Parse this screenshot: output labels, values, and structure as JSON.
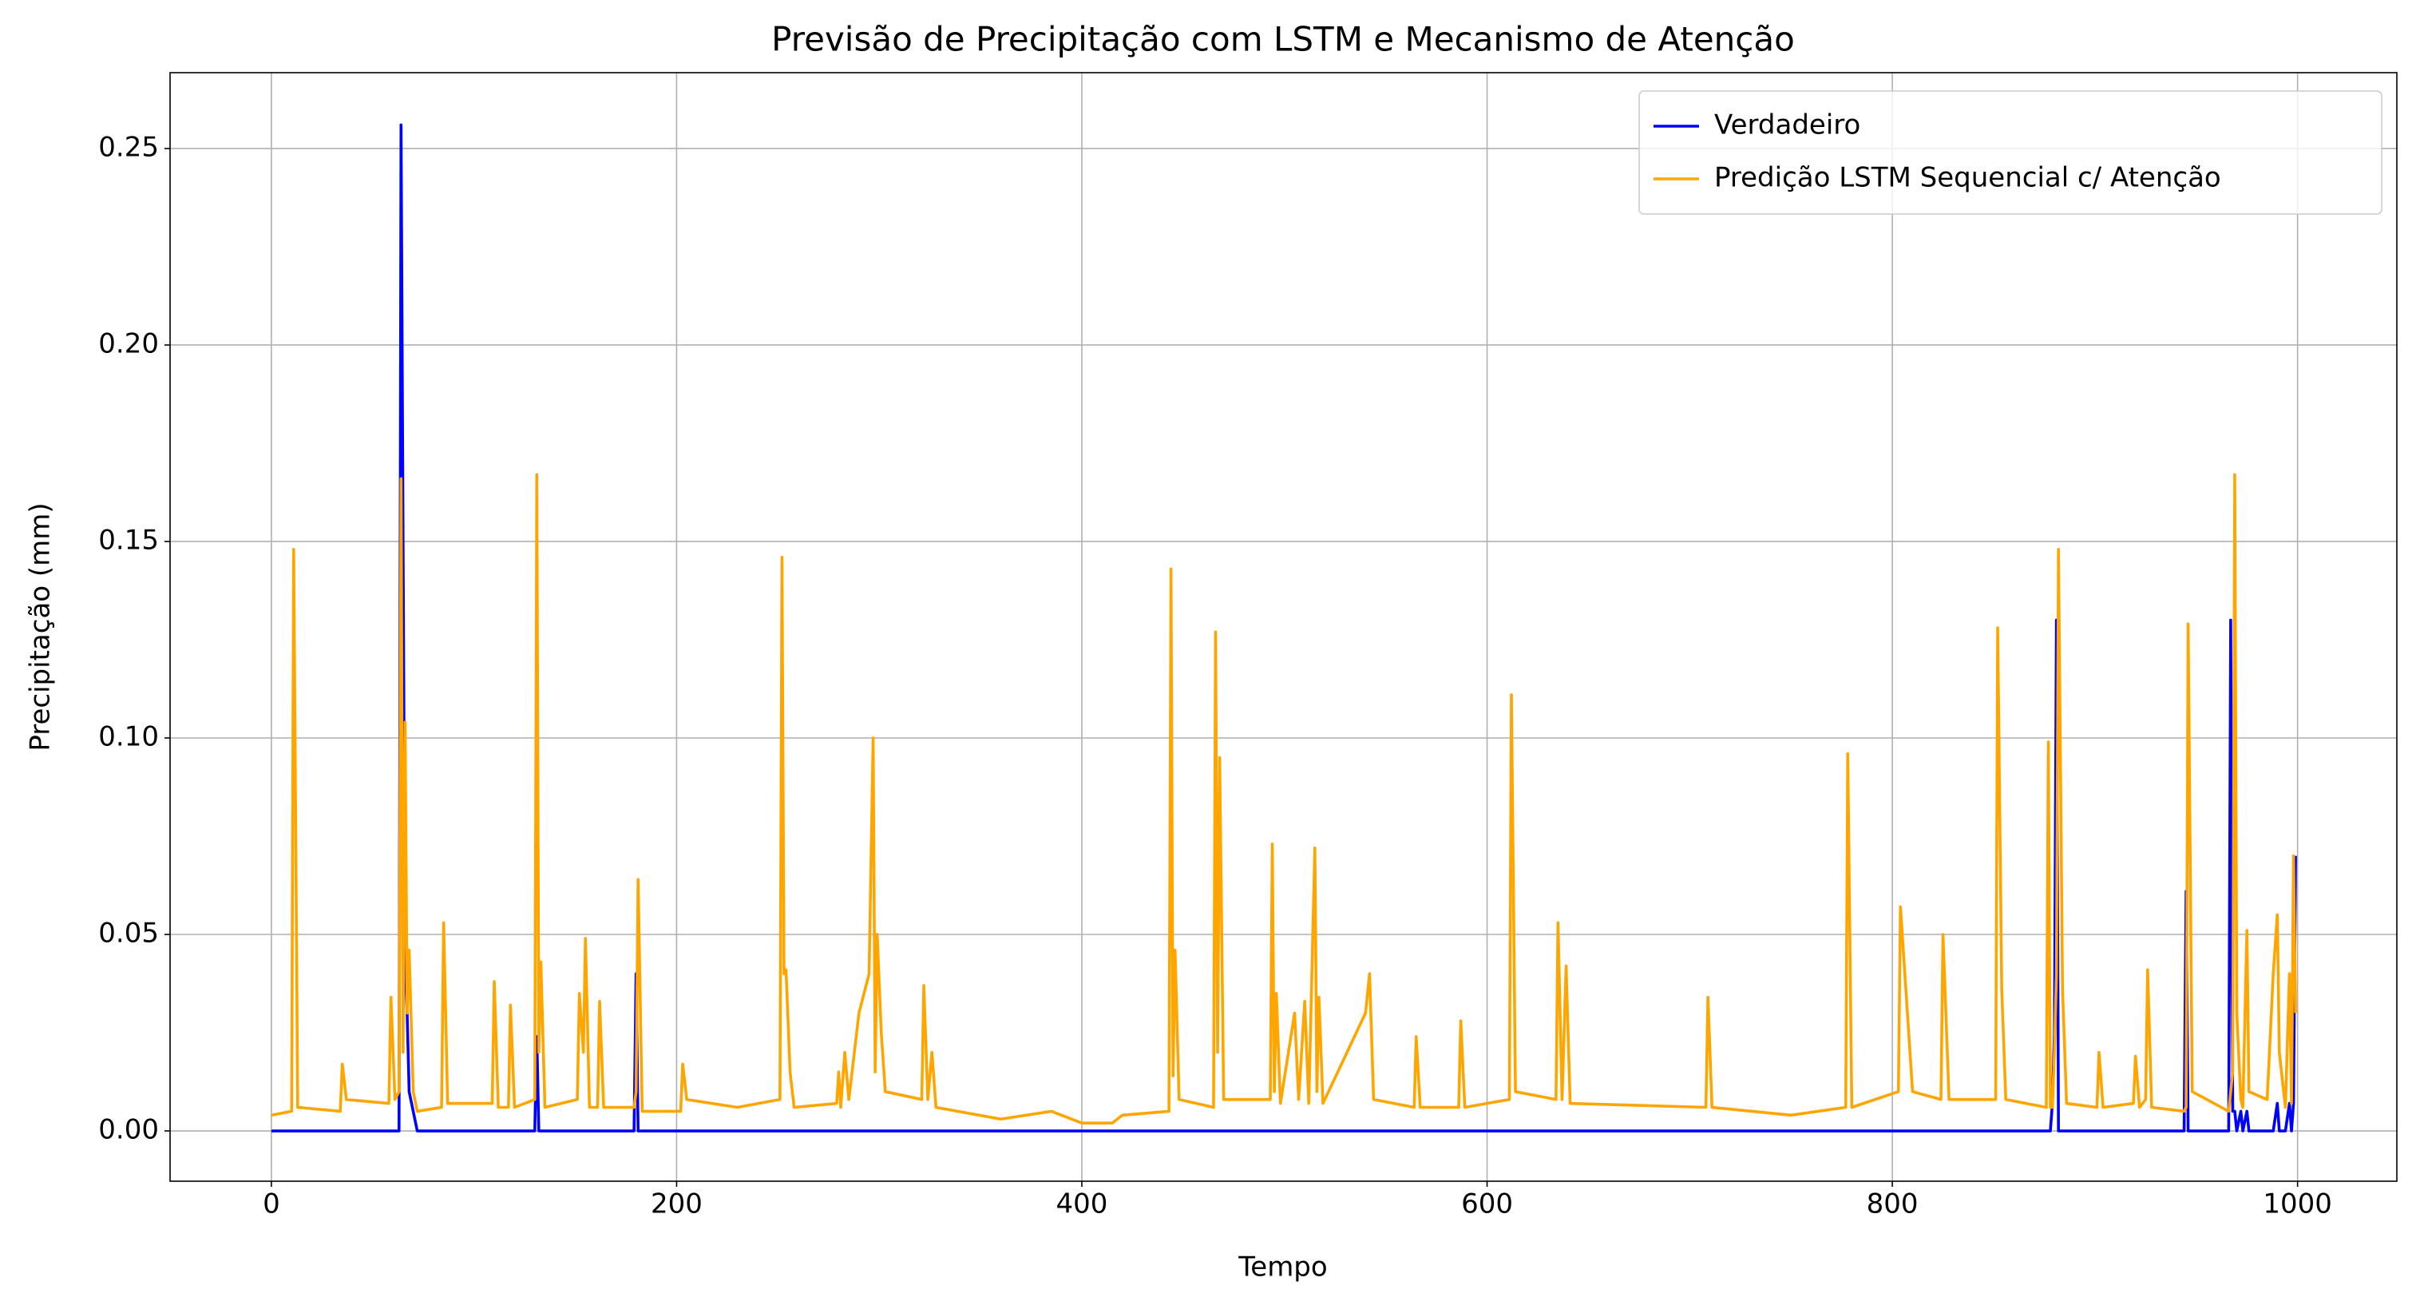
{
  "chart_data": {
    "type": "line",
    "title": "Previsão de Precipitação com LSTM e Mecanismo de Atenção",
    "x_label": "Tempo",
    "y_label": "Precipitação (mm)",
    "x": [
      0,
      10,
      11,
      13,
      34,
      35,
      37,
      58,
      59,
      61,
      63,
      64,
      65,
      66,
      67,
      68,
      70,
      72,
      84,
      85,
      87,
      109,
      110,
      112,
      117,
      118,
      120,
      130,
      131,
      132,
      133,
      135,
      151,
      152,
      154,
      155,
      157,
      161,
      162,
      164,
      179,
      180,
      181,
      183,
      202,
      203,
      205,
      230,
      251,
      252,
      253,
      254,
      256,
      258,
      279,
      280,
      281,
      283,
      285,
      290,
      295,
      297,
      298,
      299,
      301,
      303,
      321,
      322,
      324,
      326,
      328,
      360,
      385,
      400,
      415,
      420,
      443,
      444,
      445,
      446,
      448,
      465,
      466,
      467,
      468,
      470,
      493,
      494,
      495,
      496,
      498,
      505,
      507,
      510,
      512,
      515,
      516,
      517,
      519,
      540,
      542,
      544,
      564,
      565,
      567,
      586,
      587,
      589,
      611,
      612,
      614,
      634,
      635,
      637,
      639,
      641,
      708,
      709,
      711,
      750,
      777,
      778,
      780,
      803,
      804,
      810,
      824,
      825,
      828,
      851,
      852,
      854,
      856,
      876,
      877,
      878,
      879,
      880,
      881,
      882,
      884,
      886,
      901,
      902,
      904,
      919,
      920,
      922,
      925,
      926,
      928,
      944,
      945,
      946,
      948,
      966,
      967,
      968,
      969,
      970,
      972,
      973,
      975,
      976,
      985,
      988,
      990,
      991,
      994,
      996,
      997,
      998,
      999
    ],
    "series": [
      {
        "name": "Verdadeiro",
        "color": "#0000ff",
        "values": [
          0,
          0,
          0,
          0,
          0,
          0,
          0,
          0,
          0,
          0,
          0,
          0.256,
          0.15,
          0.043,
          0.03,
          0.01,
          0.005,
          0,
          0,
          0,
          0,
          0,
          0,
          0,
          0,
          0,
          0,
          0,
          0.024,
          0,
          0,
          0,
          0,
          0,
          0,
          0,
          0,
          0,
          0,
          0,
          0,
          0.04,
          0,
          0,
          0,
          0,
          0,
          0,
          0,
          0,
          0,
          0,
          0,
          0,
          0,
          0,
          0,
          0,
          0,
          0,
          0,
          0,
          0,
          0,
          0,
          0,
          0,
          0,
          0,
          0,
          0,
          0,
          0,
          0,
          0,
          0,
          0,
          0,
          0,
          0,
          0,
          0,
          0,
          0,
          0,
          0,
          0,
          0,
          0,
          0,
          0,
          0,
          0,
          0,
          0,
          0,
          0,
          0,
          0,
          0,
          0,
          0,
          0,
          0,
          0,
          0,
          0,
          0,
          0,
          0,
          0,
          0,
          0,
          0,
          0,
          0,
          0,
          0,
          0,
          0,
          0,
          0,
          0,
          0,
          0,
          0,
          0,
          0,
          0,
          0,
          0,
          0,
          0,
          0,
          0,
          0,
          0.007,
          0.025,
          0.13,
          0,
          0,
          0,
          0,
          0,
          0,
          0,
          0,
          0,
          0,
          0,
          0,
          0,
          0.061,
          0,
          0,
          0,
          0.13,
          0.005,
          0.005,
          0,
          0.005,
          0,
          0.005,
          0,
          0,
          0,
          0.007,
          0,
          0,
          0.007,
          0,
          0.007,
          0.07
        ]
      },
      {
        "name": "Predição LSTM Sequencial c/ Atenção",
        "color": "#ffa500",
        "values": [
          0.004,
          0.005,
          0.148,
          0.006,
          0.005,
          0.017,
          0.008,
          0.007,
          0.034,
          0.008,
          0.01,
          0.166,
          0.02,
          0.104,
          0.03,
          0.046,
          0.01,
          0.005,
          0.006,
          0.053,
          0.007,
          0.007,
          0.038,
          0.006,
          0.006,
          0.032,
          0.006,
          0.008,
          0.167,
          0.02,
          0.043,
          0.006,
          0.008,
          0.035,
          0.02,
          0.049,
          0.006,
          0.006,
          0.033,
          0.006,
          0.006,
          0.01,
          0.064,
          0.005,
          0.005,
          0.017,
          0.008,
          0.006,
          0.008,
          0.146,
          0.04,
          0.041,
          0.015,
          0.006,
          0.007,
          0.015,
          0.006,
          0.02,
          0.008,
          0.03,
          0.04,
          0.1,
          0.015,
          0.05,
          0.025,
          0.01,
          0.008,
          0.037,
          0.008,
          0.02,
          0.006,
          0.003,
          0.005,
          0.002,
          0.002,
          0.004,
          0.005,
          0.143,
          0.014,
          0.046,
          0.008,
          0.006,
          0.127,
          0.02,
          0.095,
          0.008,
          0.008,
          0.073,
          0.01,
          0.035,
          0.007,
          0.03,
          0.008,
          0.033,
          0.007,
          0.072,
          0.01,
          0.034,
          0.007,
          0.03,
          0.04,
          0.008,
          0.006,
          0.024,
          0.006,
          0.006,
          0.028,
          0.006,
          0.008,
          0.111,
          0.01,
          0.008,
          0.053,
          0.008,
          0.042,
          0.007,
          0.006,
          0.034,
          0.006,
          0.004,
          0.006,
          0.096,
          0.006,
          0.01,
          0.057,
          0.01,
          0.008,
          0.05,
          0.008,
          0.008,
          0.128,
          0.036,
          0.008,
          0.006,
          0.099,
          0.006,
          0.006,
          0.02,
          0.04,
          0.148,
          0.036,
          0.007,
          0.006,
          0.02,
          0.006,
          0.007,
          0.019,
          0.006,
          0.008,
          0.041,
          0.006,
          0.005,
          0.006,
          0.129,
          0.01,
          0.005,
          0.01,
          0.015,
          0.167,
          0.03,
          0.008,
          0.006,
          0.051,
          0.01,
          0.008,
          0.04,
          0.055,
          0.02,
          0.006,
          0.04,
          0.007,
          0.07,
          0.03
        ]
      }
    ],
    "xlim": [
      -50,
      1049
    ],
    "xticks": [
      0,
      200,
      400,
      600,
      800,
      1000
    ],
    "ylim": [
      -0.0128,
      0.2693
    ],
    "yticks": [
      {
        "value": 0,
        "label": "0.00"
      },
      0.05,
      {
        "value": 0.1,
        "label": "0.10"
      },
      0.15,
      {
        "value": 0.2,
        "label": "0.20"
      },
      0.25
    ],
    "grid": true,
    "legend": "upper right"
  }
}
